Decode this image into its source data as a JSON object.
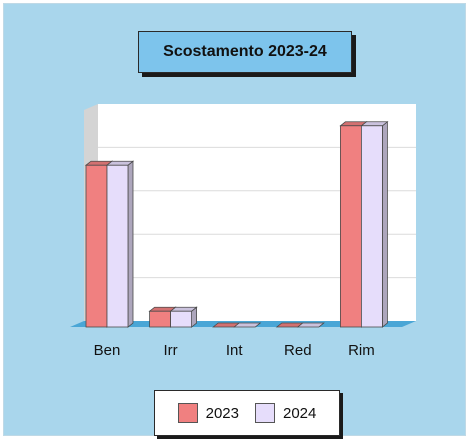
{
  "chart_data": {
    "type": "bar",
    "title": "Scostamento 2023-24",
    "categories": [
      "Ben",
      "Irr",
      "Int",
      "Red",
      "Rim"
    ],
    "series": [
      {
        "name": "2023",
        "values": [
          41,
          4,
          0,
          0,
          51
        ],
        "color": "#f08080"
      },
      {
        "name": "2024",
        "values": [
          41,
          4,
          0,
          0,
          51
        ],
        "color": "#e6ddfb"
      }
    ],
    "ylim": [
      0,
      55
    ],
    "grid": true,
    "three_d": true,
    "legend_position": "bottom",
    "colors": {
      "background": "#a9d6ec",
      "title_box": "#7dc4ec",
      "floor": "#4aa6d6",
      "back_wall": "#ffffff",
      "side_wall": "#d4d4d4"
    }
  }
}
